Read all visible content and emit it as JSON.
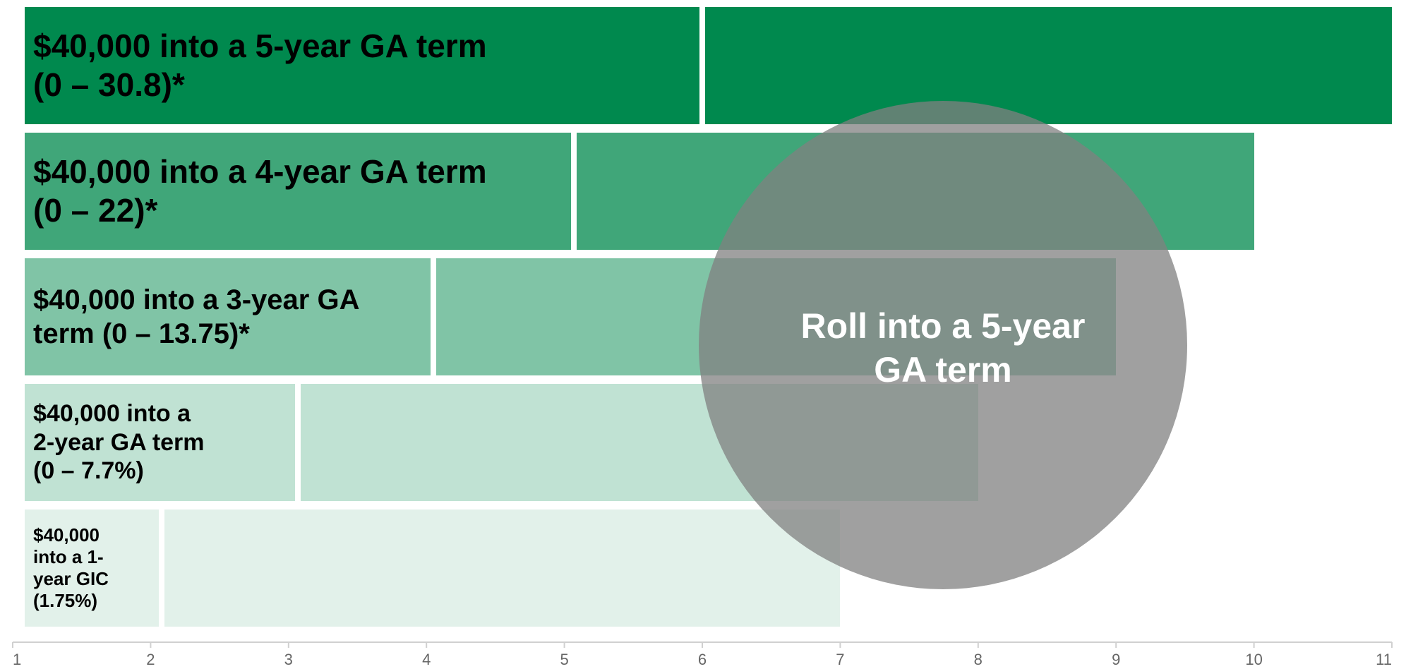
{
  "chart_data": {
    "type": "bar",
    "orientation": "horizontal",
    "x_range": [
      1,
      11
    ],
    "x_ticks": [
      "1",
      "2",
      "3",
      "4",
      "5",
      "6",
      "7",
      "8",
      "9",
      "10",
      "11"
    ],
    "rows": [
      {
        "label": "$40,000 into a 5-year GA term\n(0 – 30.8)*",
        "first_segment": [
          1,
          6
        ],
        "second_segment": [
          6,
          11
        ],
        "color": "#00894E"
      },
      {
        "label": "$40,000 into a 4-year GA term\n(0 – 22)*",
        "first_segment": [
          1,
          5.07
        ],
        "second_segment": [
          5.07,
          10
        ],
        "color": "#40A679"
      },
      {
        "label": "$40,000 into a 3-year GA\nterm (0 – 13.75)*",
        "first_segment": [
          1,
          4.05
        ],
        "second_segment": [
          4.05,
          9
        ],
        "color": "#80C4A6"
      },
      {
        "label": "$40,000 into a\n2-year GA term\n(0 – 7.7%)",
        "first_segment": [
          1,
          3.07
        ],
        "second_segment": [
          3.07,
          8
        ],
        "color": "#C0E2D3"
      },
      {
        "label": "$40,000\ninto a 1-\nyear GIC\n(1.75%)",
        "first_segment": [
          1,
          2.08
        ],
        "second_segment": [
          2.08,
          7
        ],
        "color": "#E2F1EA"
      }
    ],
    "annotation": "Roll into a 5-year\nGA term",
    "annotation_color": "#808080"
  }
}
